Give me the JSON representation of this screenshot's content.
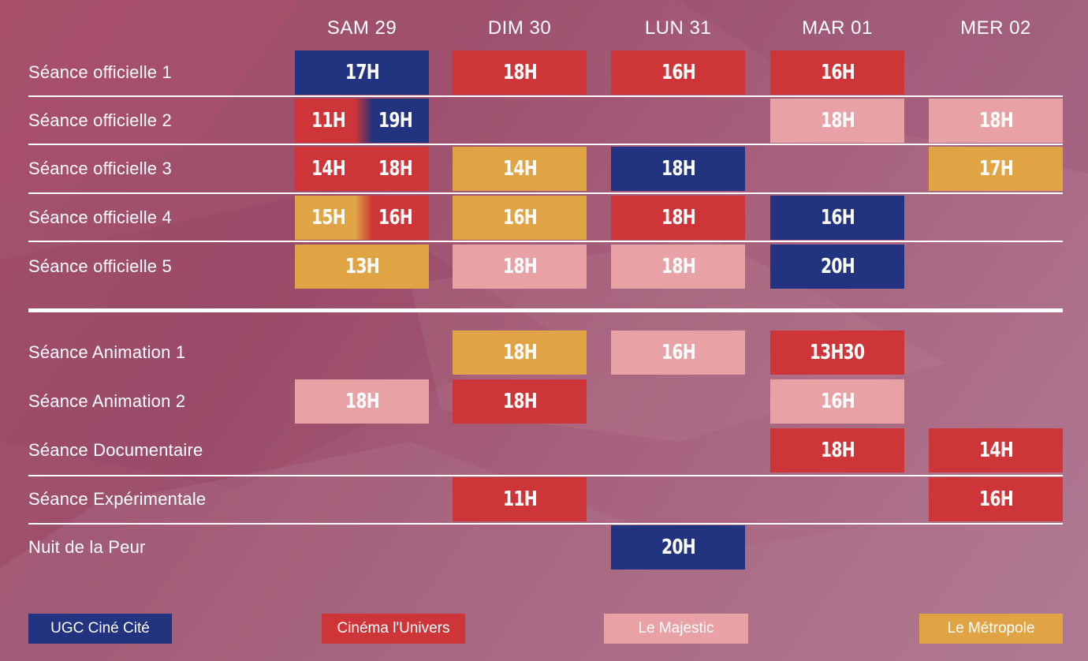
{
  "venues": {
    "ugc": {
      "name": "UGC Ciné Cité",
      "color": "#22347f"
    },
    "univers": {
      "name": "Cinéma l'Univers",
      "color": "#cd3538"
    },
    "majestic": {
      "name": "Le Majestic",
      "color": "#e8a2a6"
    },
    "metropole": {
      "name": "Le Métropole",
      "color": "#e1a444"
    }
  },
  "days": [
    "SAM 29",
    "DIM 30",
    "LUN 31",
    "MAR 01",
    "MER 02"
  ],
  "rows": [
    {
      "label": "Séance officielle 1",
      "cells": [
        [
          {
            "time": "17H",
            "venue": "ugc"
          }
        ],
        [
          {
            "time": "18H",
            "venue": "univers"
          }
        ],
        [
          {
            "time": "16H",
            "venue": "univers"
          }
        ],
        [
          {
            "time": "16H",
            "venue": "univers"
          }
        ],
        []
      ]
    },
    {
      "label": "Séance officielle 2",
      "cells": [
        [
          {
            "time": "11H",
            "venue": "univers"
          },
          {
            "time": "19H",
            "venue": "ugc"
          }
        ],
        [],
        [],
        [
          {
            "time": "18H",
            "venue": "majestic"
          }
        ],
        [
          {
            "time": "18H",
            "venue": "majestic"
          }
        ]
      ]
    },
    {
      "label": "Séance officielle 3",
      "cells": [
        [
          {
            "time": "14H",
            "venue": "univers"
          },
          {
            "time": "18H",
            "venue": "univers"
          }
        ],
        [
          {
            "time": "14H",
            "venue": "metropole"
          }
        ],
        [
          {
            "time": "18H",
            "venue": "ugc"
          }
        ],
        [],
        [
          {
            "time": "17H",
            "venue": "metropole"
          }
        ]
      ]
    },
    {
      "label": "Séance officielle 4",
      "cells": [
        [
          {
            "time": "15H",
            "venue": "metropole"
          },
          {
            "time": "16H",
            "venue": "univers"
          }
        ],
        [
          {
            "time": "16H",
            "venue": "metropole"
          }
        ],
        [
          {
            "time": "18H",
            "venue": "univers"
          }
        ],
        [
          {
            "time": "16H",
            "venue": "ugc"
          }
        ],
        []
      ]
    },
    {
      "label": "Séance officielle 5",
      "cells": [
        [
          {
            "time": "13H",
            "venue": "metropole"
          }
        ],
        [
          {
            "time": "18H",
            "venue": "majestic"
          }
        ],
        [
          {
            "time": "18H",
            "venue": "majestic"
          }
        ],
        [
          {
            "time": "20H",
            "venue": "ugc"
          }
        ],
        []
      ]
    },
    {
      "label": "Séance Animation 1",
      "cells": [
        [],
        [
          {
            "time": "18H",
            "venue": "metropole"
          }
        ],
        [
          {
            "time": "16H",
            "venue": "majestic"
          }
        ],
        [
          {
            "time": "13H30",
            "venue": "univers"
          }
        ],
        []
      ]
    },
    {
      "label": "Séance Animation 2",
      "cells": [
        [
          {
            "time": "18H",
            "venue": "majestic"
          }
        ],
        [
          {
            "time": "18H",
            "venue": "univers"
          }
        ],
        [],
        [
          {
            "time": "16H",
            "venue": "majestic"
          }
        ],
        []
      ]
    },
    {
      "label": "Séance Documentaire",
      "cells": [
        [],
        [],
        [],
        [
          {
            "time": "18H",
            "venue": "univers"
          }
        ],
        [
          {
            "time": "14H",
            "venue": "univers"
          }
        ]
      ]
    },
    {
      "label": "Séance Expérimentale",
      "cells": [
        [],
        [
          {
            "time": "11H",
            "venue": "univers"
          }
        ],
        [],
        [],
        [
          {
            "time": "16H",
            "venue": "univers"
          }
        ]
      ]
    },
    {
      "label": "Nuit de la Peur",
      "cells": [
        [],
        [],
        [
          {
            "time": "20H",
            "venue": "ugc"
          }
        ],
        [],
        []
      ]
    }
  ],
  "legend": [
    "ugc",
    "univers",
    "majestic",
    "metropole"
  ]
}
